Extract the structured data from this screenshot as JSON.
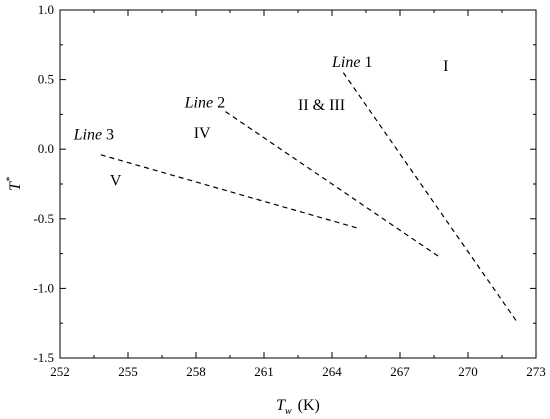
{
  "chart_data": {
    "type": "line",
    "xlabel": "T_w (K)",
    "xlabel_main": "T",
    "xlabel_sub": "w",
    "xlabel_unit": "(K)",
    "ylabel": "T*",
    "ylabel_main": "T",
    "ylabel_sup": "*",
    "xlim": [
      252,
      273
    ],
    "ylim": [
      -1.5,
      1.0
    ],
    "x_ticks": [
      252,
      255,
      258,
      261,
      264,
      267,
      270,
      273
    ],
    "x_tick_labels": [
      "252",
      "255",
      "258",
      "261",
      "264",
      "267",
      "270",
      "273"
    ],
    "y_ticks": [
      -1.5,
      -1.0,
      -0.5,
      0.0,
      0.5,
      1.0
    ],
    "y_tick_labels": [
      "-1.5",
      "-1.0",
      "-0.5",
      "0.0",
      "0.5",
      "1.0"
    ],
    "grid": false,
    "series": [
      {
        "name": "Line 1",
        "name_italic": "Line",
        "name_num": "1",
        "x": [
          264.5,
          272.2
        ],
        "y": [
          0.55,
          -1.25
        ],
        "label_at": [
          264.0,
          0.59
        ]
      },
      {
        "name": "Line 2",
        "name_italic": "Line",
        "name_num": "2",
        "x": [
          259.3,
          268.7
        ],
        "y": [
          0.27,
          -0.77
        ],
        "label_at": [
          257.5,
          0.3
        ]
      },
      {
        "name": "Line 3",
        "name_italic": "Line",
        "name_num": "3",
        "x": [
          253.8,
          265.2
        ],
        "y": [
          -0.04,
          -0.57
        ],
        "label_at": [
          252.6,
          0.07
        ]
      }
    ],
    "annotations": [
      {
        "text": "I",
        "x": 268.9,
        "y": 0.56
      },
      {
        "text": "II & III",
        "x": 262.5,
        "y": 0.28
      },
      {
        "text": "IV",
        "x": 257.9,
        "y": 0.08
      },
      {
        "text": "V",
        "x": 254.2,
        "y": -0.26
      }
    ]
  }
}
